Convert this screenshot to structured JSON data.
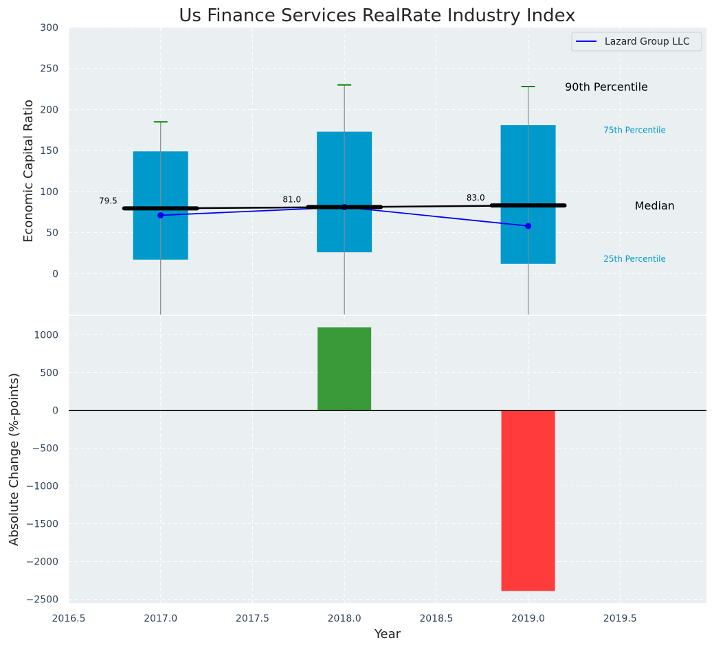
{
  "chart_data": [
    {
      "type": "box-range",
      "title": "Us Finance Services RealRate Industry Index",
      "xlabel": "",
      "ylabel": "Economic Capital Ratio",
      "xlim": [
        2016.5,
        2019.97
      ],
      "ylim": [
        -50,
        300
      ],
      "yticks": [
        0,
        50,
        100,
        150,
        200,
        250,
        300
      ],
      "years": [
        2017,
        2018,
        2019
      ],
      "p25": [
        17,
        26,
        12
      ],
      "p75": [
        149,
        173,
        181
      ],
      "p90": [
        185,
        230,
        228
      ],
      "whisker_low": [
        -50,
        -50,
        -50
      ],
      "median": [
        79.5,
        81.0,
        83.0
      ],
      "median_labels": [
        "79.5",
        "81.0",
        "83.0"
      ],
      "series": [
        {
          "name": "Lazard Group LLC",
          "values": [
            71,
            81,
            58
          ]
        }
      ],
      "annotations": {
        "p90": "90th Percentile",
        "p75": "75th Percentile",
        "median": "Median",
        "p25": "25th Percentile"
      },
      "legend": {
        "position": "top-right"
      },
      "grid": true
    },
    {
      "type": "bar",
      "xlabel": "Year",
      "ylabel": "Absolute Change (%-points)",
      "xlim": [
        2016.5,
        2019.97
      ],
      "ylim": [
        -2550,
        1250
      ],
      "xticks": [
        2016.5,
        2017.0,
        2017.5,
        2018.0,
        2018.5,
        2019.0,
        2019.5
      ],
      "xtick_labels": [
        "2016.5",
        "2017.0",
        "2017.5",
        "2018.0",
        "2018.5",
        "2019.0",
        "2019.5"
      ],
      "yticks": [
        1000,
        500,
        0,
        -500,
        -1000,
        -1500,
        -2000,
        -2500
      ],
      "ytick_labels": [
        "1000",
        "500",
        "0",
        "−500",
        "−1000",
        "−1500",
        "−2000",
        "−2500"
      ],
      "categories": [
        2018,
        2019
      ],
      "values": [
        1100,
        -2390
      ],
      "grid": true
    }
  ],
  "colors": {
    "background": "#eaeff1",
    "box": "#0099cc",
    "series": "#0000ee",
    "p90": "#008000",
    "median": "#000000",
    "whisker": "#7f8a90",
    "gain": "#3a9a3a",
    "loss": "#ff3b3b",
    "pct_label": "#0099cc"
  }
}
